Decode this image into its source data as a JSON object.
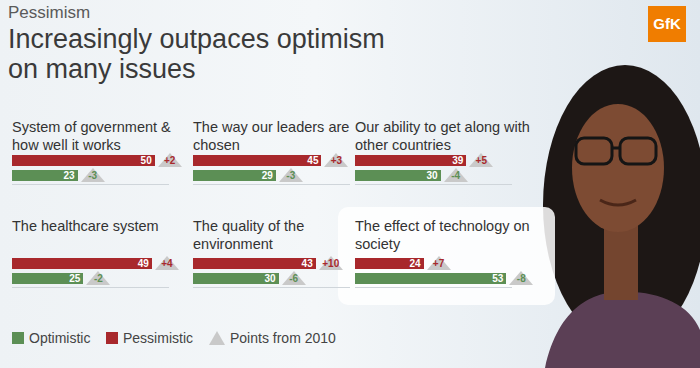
{
  "header": {
    "section": "Pessimism",
    "title": "Increasingly outpaces optimism on many issues"
  },
  "logo": "GfK",
  "change_legend": "Points from 2010",
  "chart_data": [
    {
      "type": "bar",
      "orientation": "horizontal",
      "title": "System of government & how well it works",
      "data_labels": true,
      "tick_labels": false,
      "xlim": [
        0,
        55
      ],
      "series": [
        {
          "name": "Pessimistic",
          "color": "#a8282c",
          "values": [
            50
          ],
          "change": [
            2
          ],
          "change_labels": [
            "+2"
          ]
        },
        {
          "name": "Optimistic",
          "color": "#5c8f55",
          "values": [
            23
          ],
          "change": [
            -3
          ],
          "change_labels": [
            "-3"
          ]
        }
      ]
    },
    {
      "type": "bar",
      "orientation": "horizontal",
      "title": "The way our leaders are chosen",
      "data_labels": true,
      "tick_labels": false,
      "xlim": [
        0,
        55
      ],
      "series": [
        {
          "color": "#a8282c",
          "values": [
            45
          ],
          "change": [
            3
          ],
          "change_labels": [
            "+3"
          ]
        },
        {
          "color": "#5c8f55",
          "values": [
            29
          ],
          "change": [
            -3
          ],
          "change_labels": [
            "-3"
          ]
        }
      ]
    },
    {
      "type": "bar",
      "orientation": "horizontal",
      "title": "Our ability to get along with other countries",
      "data_labels": true,
      "tick_labels": false,
      "xlim": [
        0,
        55
      ],
      "series": [
        {
          "color": "#a8282c",
          "values": [
            39
          ],
          "change": [
            5
          ],
          "change_labels": [
            "+5"
          ]
        },
        {
          "color": "#5c8f55",
          "values": [
            30
          ],
          "change": [
            -4
          ],
          "change_labels": [
            "-4"
          ]
        }
      ]
    },
    {
      "type": "bar",
      "orientation": "horizontal",
      "title": "The healthcare system",
      "data_labels": true,
      "tick_labels": false,
      "xlim": [
        0,
        55
      ],
      "series": [
        {
          "color": "#a8282c",
          "values": [
            49
          ],
          "change": [
            4
          ],
          "change_labels": [
            "+4"
          ]
        },
        {
          "color": "#5c8f55",
          "values": [
            25
          ],
          "change": [
            -2
          ],
          "change_labels": [
            "-2"
          ]
        }
      ]
    },
    {
      "type": "bar",
      "orientation": "horizontal",
      "title": "The quality of the environment",
      "data_labels": true,
      "tick_labels": false,
      "xlim": [
        0,
        55
      ],
      "series": [
        {
          "color": "#a8282c",
          "values": [
            43
          ],
          "change": [
            10
          ],
          "change_labels": [
            "+10"
          ]
        },
        {
          "color": "#5c8f55",
          "values": [
            30
          ],
          "change": [
            -6
          ],
          "change_labels": [
            "-6"
          ]
        }
      ]
    },
    {
      "type": "bar",
      "orientation": "horizontal",
      "title": "The effect of technology on society",
      "data_labels": true,
      "tick_labels": false,
      "xlim": [
        0,
        55
      ],
      "series": [
        {
          "color": "#a8282c",
          "values": [
            24
          ],
          "change": [
            7
          ],
          "change_labels": [
            "+7"
          ]
        },
        {
          "color": "#5c8f55",
          "values": [
            53
          ],
          "change": [
            -8
          ],
          "change_labels": [
            "-8"
          ]
        }
      ]
    }
  ]
}
